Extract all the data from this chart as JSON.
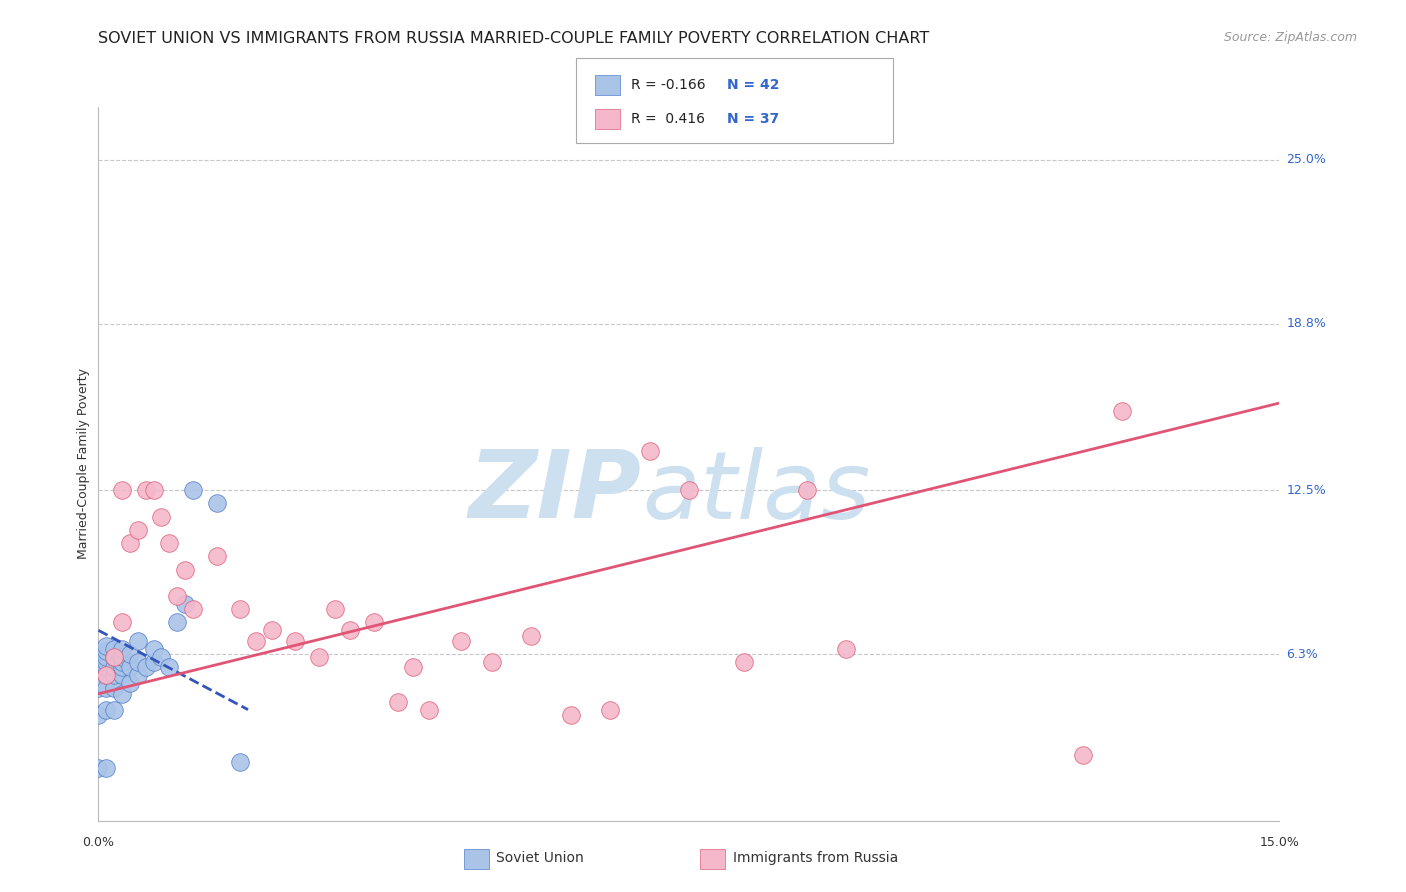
{
  "title": "SOVIET UNION VS IMMIGRANTS FROM RUSSIA MARRIED-COUPLE FAMILY POVERTY CORRELATION CHART",
  "source": "Source: ZipAtlas.com",
  "ylabel": "Married-Couple Family Poverty",
  "ytick_labels": [
    "25.0%",
    "18.8%",
    "12.5%",
    "6.3%"
  ],
  "ytick_values": [
    0.25,
    0.188,
    0.125,
    0.063
  ],
  "xtick_labels": [
    "0.0%",
    "15.0%"
  ],
  "xtick_values": [
    0.0,
    0.15
  ],
  "xlim": [
    0.0,
    0.15
  ],
  "ylim": [
    0.0,
    0.27
  ],
  "series1_name": "Soviet Union",
  "series1_color": "#aac4e8",
  "series1_edge_color": "#5580cc",
  "series2_name": "Immigrants from Russia",
  "series2_color": "#f5b8cb",
  "series2_edge_color": "#e0607a",
  "watermark_zip": "ZIP",
  "watermark_atlas": "atlas",
  "watermark_color": "#cce0f0",
  "legend_r1": "R = -0.166",
  "legend_n1": "N = 42",
  "legend_r2": "R =  0.416",
  "legend_n2": "N = 37",
  "su_x": [
    0.0,
    0.0,
    0.0,
    0.0,
    0.0,
    0.001,
    0.001,
    0.001,
    0.001,
    0.001,
    0.001,
    0.001,
    0.001,
    0.001,
    0.002,
    0.002,
    0.002,
    0.002,
    0.002,
    0.002,
    0.003,
    0.003,
    0.003,
    0.003,
    0.003,
    0.003,
    0.004,
    0.004,
    0.004,
    0.005,
    0.005,
    0.005,
    0.006,
    0.007,
    0.007,
    0.008,
    0.009,
    0.01,
    0.011,
    0.012,
    0.015,
    0.018
  ],
  "su_y": [
    0.02,
    0.04,
    0.05,
    0.058,
    0.062,
    0.02,
    0.042,
    0.05,
    0.055,
    0.058,
    0.06,
    0.062,
    0.064,
    0.066,
    0.042,
    0.05,
    0.055,
    0.058,
    0.062,
    0.065,
    0.048,
    0.055,
    0.058,
    0.06,
    0.062,
    0.065,
    0.052,
    0.058,
    0.063,
    0.055,
    0.06,
    0.068,
    0.058,
    0.06,
    0.065,
    0.062,
    0.058,
    0.075,
    0.082,
    0.125,
    0.12,
    0.022
  ],
  "ru_x": [
    0.001,
    0.002,
    0.003,
    0.003,
    0.004,
    0.005,
    0.006,
    0.007,
    0.008,
    0.009,
    0.01,
    0.011,
    0.012,
    0.015,
    0.018,
    0.02,
    0.022,
    0.025,
    0.028,
    0.03,
    0.032,
    0.035,
    0.038,
    0.04,
    0.042,
    0.046,
    0.05,
    0.055,
    0.06,
    0.065,
    0.07,
    0.075,
    0.082,
    0.09,
    0.095,
    0.125,
    0.13
  ],
  "ru_y": [
    0.055,
    0.062,
    0.075,
    0.125,
    0.105,
    0.11,
    0.125,
    0.125,
    0.115,
    0.105,
    0.085,
    0.095,
    0.08,
    0.1,
    0.08,
    0.068,
    0.072,
    0.068,
    0.062,
    0.08,
    0.072,
    0.075,
    0.045,
    0.058,
    0.042,
    0.068,
    0.06,
    0.07,
    0.04,
    0.042,
    0.14,
    0.125,
    0.06,
    0.125,
    0.065,
    0.025,
    0.155
  ],
  "trend1_x0": 0.0,
  "trend1_x1": 0.019,
  "trend1_y0": 0.072,
  "trend1_y1": 0.042,
  "trend2_x0": 0.0,
  "trend2_x1": 0.15,
  "trend2_y0": 0.048,
  "trend2_y1": 0.158,
  "background_color": "#ffffff",
  "grid_color": "#c8c8c8",
  "title_fontsize": 11.5,
  "ylabel_fontsize": 9,
  "tick_fontsize": 9,
  "source_fontsize": 9
}
